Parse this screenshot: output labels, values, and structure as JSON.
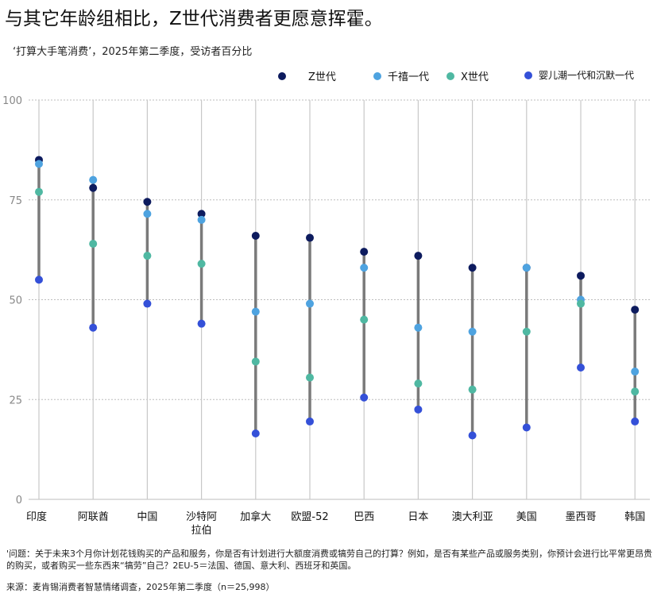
{
  "title": "与其它年龄组相比，Z世代消费者更愿意挥霍。",
  "subtitle": "‘打算大手笔消费’，2025年第二季度，受访者百分比",
  "legend": [
    {
      "label": "Z世代",
      "color": "#0d1b5e"
    },
    {
      "label": "千禧一代",
      "color": "#4ea3e0"
    },
    {
      "label": "X世代",
      "color": "#4fb8a2"
    },
    {
      "label": "婴儿潮一代和沉默一代",
      "color": "#3450d8"
    }
  ],
  "footnote": "'问题：关于未来3个月你计划花钱购买的产品和服务，你是否有计划进行大额度消费或犒劳自己的打算？例如，是否有某些产品或服务类别，你预计会进行比平常更昂贵的购买，或者购买一些东西来“犒劳”自己？2EU-5＝法国、德国、意大利、西班牙和英国。",
  "source": "来源：麦肯锡消费者智慧情绪调查，2025年第二季度（n＝25,998）",
  "chart_data": {
    "type": "scatter",
    "ylim": [
      0,
      100
    ],
    "yticks": [
      0,
      25,
      50,
      75,
      100
    ],
    "grid": true,
    "legend_position": "top-right",
    "categories": [
      [
        "印度"
      ],
      [
        "阿联酋"
      ],
      [
        "中国"
      ],
      [
        "沙特阿",
        "拉伯"
      ],
      [
        "加拿大"
      ],
      [
        "欧盟-52"
      ],
      [
        "巴西"
      ],
      [
        "日本"
      ],
      [
        "澳大利亚"
      ],
      [
        "美国"
      ],
      [
        "墨西哥"
      ],
      [
        "韩国"
      ]
    ],
    "series": [
      {
        "name": "Z世代",
        "values": [
          85,
          78,
          74.5,
          71.5,
          66,
          65.5,
          62,
          61,
          58,
          58,
          56,
          47.5
        ]
      },
      {
        "name": "千禧一代",
        "values": [
          84,
          80,
          71.5,
          70,
          47,
          49,
          58,
          43,
          42,
          58,
          50,
          32
        ]
      },
      {
        "name": "X世代",
        "values": [
          77,
          64,
          61,
          59,
          34.5,
          30.5,
          45,
          29,
          27.5,
          42,
          49,
          27
        ]
      },
      {
        "name": "婴儿潮一代和沉默一代",
        "values": [
          55,
          43,
          49,
          44,
          16.5,
          19.5,
          25.5,
          22.5,
          16,
          18,
          33,
          19.5
        ]
      }
    ]
  }
}
